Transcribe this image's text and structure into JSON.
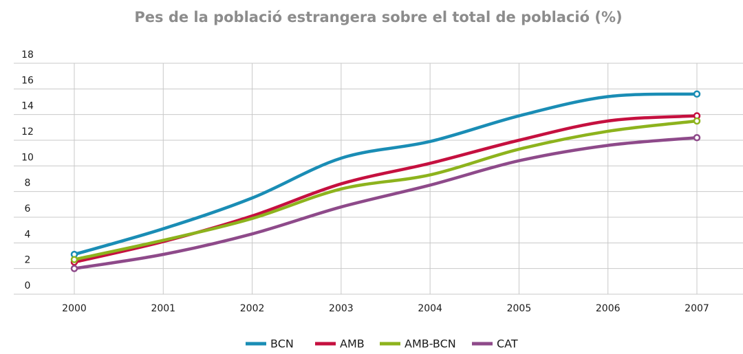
{
  "chart_data": {
    "type": "line",
    "title": "Pes de la població estrangera sobre el total de població (%)",
    "categories": [
      "2000",
      "2001",
      "2002",
      "2003",
      "2004",
      "2005",
      "2006",
      "2007"
    ],
    "series": [
      {
        "name": "BCN",
        "color": "#1a8db5",
        "values": [
          3.1,
          5.1,
          7.5,
          10.6,
          11.9,
          13.9,
          15.4,
          15.6
        ]
      },
      {
        "name": "AMB",
        "color": "#c5103f",
        "values": [
          2.5,
          4.1,
          6.1,
          8.6,
          10.2,
          12.0,
          13.5,
          13.9
        ]
      },
      {
        "name": "AMB-BCN",
        "color": "#8db31d",
        "values": [
          2.7,
          4.2,
          5.9,
          8.2,
          9.3,
          11.3,
          12.7,
          13.5
        ]
      },
      {
        "name": "CAT",
        "color": "#8e4a8a",
        "values": [
          2.0,
          3.1,
          4.7,
          6.8,
          8.5,
          10.4,
          11.6,
          12.2
        ]
      }
    ],
    "ylim": [
      0,
      18
    ],
    "yticks": [
      0,
      2,
      4,
      6,
      8,
      10,
      12,
      14,
      16,
      18
    ],
    "grid": true,
    "legend": "bottom"
  }
}
